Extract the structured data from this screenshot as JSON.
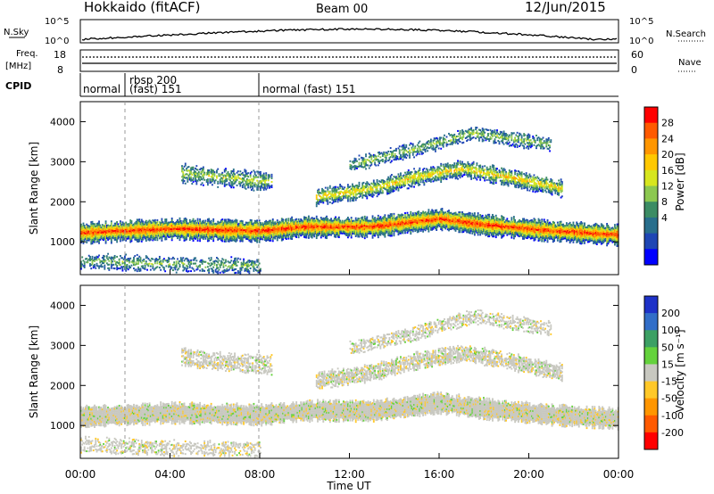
{
  "header": {
    "site": "Hokkaido (fitACF)",
    "beam": "Beam 00",
    "date": "12/Jun/2015"
  },
  "strips": {
    "nsky_label": "N.Sky",
    "nsearch_label": "N.Search",
    "freq_label_1": "Freq.",
    "freq_label_2": "[MHz]",
    "nave_label": "Nave",
    "cpid_label": "CPID",
    "nsky_ticks": [
      "10^5",
      "10^0"
    ],
    "nsearch_ticks": [
      "10^5",
      "10^0"
    ],
    "freq_ticks": [
      "18",
      "8"
    ],
    "nave_ticks": [
      "60",
      "0"
    ],
    "cpid_segments": [
      {
        "label": "normal",
        "start": 0.0
      },
      {
        "label": "rbsp 200",
        "label2": "(fast) 151",
        "start": 1.9
      },
      {
        "label": "normal (fast) 151",
        "start": 8.0
      }
    ]
  },
  "chart_data": [
    {
      "type": "heatmap",
      "panel": "power",
      "ylabel": "Slant Range [km]",
      "xlabel": "",
      "xlim": [
        0,
        24
      ],
      "ylim": [
        180,
        4500
      ],
      "yticks": [
        1000,
        2000,
        3000,
        4000
      ],
      "colorbar": {
        "label": "Power [dB]",
        "ticks": [
          "28",
          "24",
          "20",
          "16",
          "12",
          "8",
          "4"
        ],
        "colors": [
          "#ff0000",
          "#ff5a00",
          "#ff9600",
          "#ffc800",
          "#d7e61e",
          "#8cc850",
          "#3c8c64",
          "#286e8c",
          "#1e46b4",
          "#0000ff"
        ]
      },
      "echo_bands": [
        {
          "name": "main",
          "start": 0.0,
          "end": 24.0,
          "center": [
            [
              0,
              1200
            ],
            [
              4,
              1300
            ],
            [
              8,
              1250
            ],
            [
              10,
              1350
            ],
            [
              13,
              1350
            ],
            [
              16,
              1550
            ],
            [
              18,
              1400
            ],
            [
              21,
              1250
            ],
            [
              24,
              1150
            ]
          ],
          "halfwidth": 220,
          "level": 0.85
        },
        {
          "name": "upper",
          "start": 10.5,
          "end": 21.5,
          "center": [
            [
              10.5,
              2100
            ],
            [
              13,
              2300
            ],
            [
              15,
              2600
            ],
            [
              17,
              2800
            ],
            [
              19,
              2600
            ],
            [
              21.5,
              2300
            ]
          ],
          "halfwidth": 180,
          "level": 0.55
        },
        {
          "name": "far",
          "start": 12.0,
          "end": 21.0,
          "center": [
            [
              12,
              2900
            ],
            [
              15,
              3300
            ],
            [
              17.5,
              3700
            ],
            [
              21,
              3400
            ]
          ],
          "halfwidth": 150,
          "level": 0.35
        },
        {
          "name": "morning",
          "start": 4.5,
          "end": 8.5,
          "center": [
            [
              4.5,
              2700
            ],
            [
              6,
              2600
            ],
            [
              8,
              2500
            ]
          ],
          "halfwidth": 200,
          "level": 0.4
        },
        {
          "name": "near",
          "start": 0.0,
          "end": 8.0,
          "center": [
            [
              0,
              500
            ],
            [
              4,
              420
            ],
            [
              8,
              380
            ]
          ],
          "halfwidth": 160,
          "level": 0.3
        }
      ]
    },
    {
      "type": "heatmap",
      "panel": "velocity",
      "ylabel": "Slant Range [km]",
      "xlabel": "Time UT",
      "xlim": [
        0,
        24
      ],
      "ylim": [
        180,
        4500
      ],
      "yticks": [
        1000,
        2000,
        3000,
        4000
      ],
      "xticks": [
        "00:00",
        "04:00",
        "08:00",
        "12:00",
        "16:00",
        "20:00",
        "00:00"
      ],
      "colorbar": {
        "label": "Velocity [m s⁻¹]",
        "ticks": [
          "200",
          "100",
          "50",
          "15",
          "-15",
          "-50",
          "-100",
          "-200"
        ],
        "colors": [
          "#1e32c8",
          "#326ec8",
          "#3ca064",
          "#64d23c",
          "#c8c8c0",
          "#ffc828",
          "#ff9600",
          "#ff5a00",
          "#ff0000"
        ]
      },
      "dominant_colors": [
        "#c8c8c0",
        "#ffc828",
        "#64d23c"
      ]
    }
  ]
}
